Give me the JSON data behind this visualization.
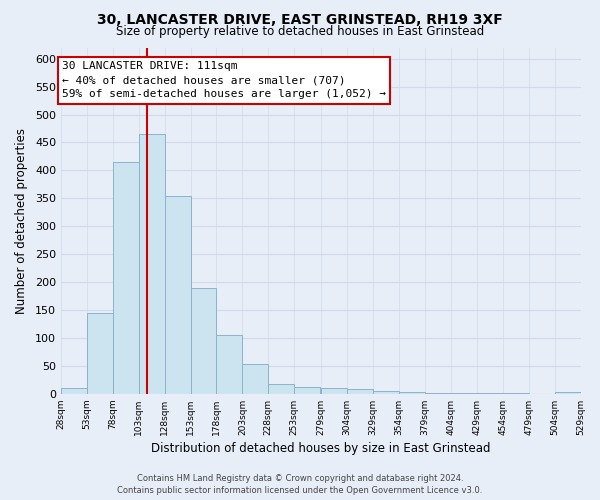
{
  "title": "30, LANCASTER DRIVE, EAST GRINSTEAD, RH19 3XF",
  "subtitle": "Size of property relative to detached houses in East Grinstead",
  "xlabel": "Distribution of detached houses by size in East Grinstead",
  "ylabel": "Number of detached properties",
  "bin_starts": [
    28,
    53,
    78,
    103,
    128,
    153,
    178,
    203,
    228,
    253,
    279,
    304,
    329,
    354,
    379,
    404,
    429,
    454,
    479,
    504
  ],
  "bin_width": 25,
  "bin_labels": [
    "28sqm",
    "53sqm",
    "78sqm",
    "103sqm",
    "128sqm",
    "153sqm",
    "178sqm",
    "203sqm",
    "228sqm",
    "253sqm",
    "279sqm",
    "304sqm",
    "329sqm",
    "354sqm",
    "379sqm",
    "404sqm",
    "429sqm",
    "454sqm",
    "479sqm",
    "504sqm",
    "529sqm"
  ],
  "counts": [
    10,
    145,
    415,
    465,
    355,
    190,
    105,
    53,
    18,
    13,
    10,
    8,
    5,
    3,
    2,
    1,
    1,
    1,
    0,
    4
  ],
  "bar_color": "#cce4f0",
  "bar_edge_color": "#8ab4cc",
  "property_line_x": 111,
  "property_line_color": "#cc0000",
  "annotation_text_line1": "30 LANCASTER DRIVE: 111sqm",
  "annotation_text_line2": "← 40% of detached houses are smaller (707)",
  "annotation_text_line3": "59% of semi-detached houses are larger (1,052) →",
  "annotation_box_facecolor": "#ffffff",
  "annotation_box_edgecolor": "#cc0000",
  "ylim": [
    0,
    620
  ],
  "yticks": [
    0,
    50,
    100,
    150,
    200,
    250,
    300,
    350,
    400,
    450,
    500,
    550,
    600
  ],
  "footer_line1": "Contains HM Land Registry data © Crown copyright and database right 2024.",
  "footer_line2": "Contains public sector information licensed under the Open Government Licence v3.0.",
  "background_color": "#e8eef8",
  "grid_color": "#d0dae8"
}
